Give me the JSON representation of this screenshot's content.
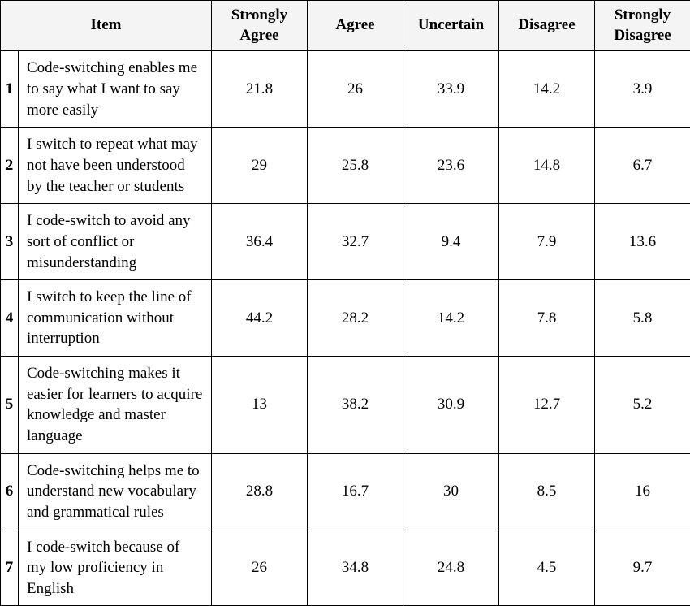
{
  "table": {
    "columns": {
      "item": "Item",
      "responses": [
        "Strongly Agree",
        "Agree",
        "Uncertain",
        "Disagree",
        "Strongly Disagree"
      ]
    },
    "rows": [
      {
        "num": "1",
        "item": "Code-switching enables me to say what I want to say more easily",
        "values": [
          "21.8",
          "26",
          "33.9",
          "14.2",
          "3.9"
        ]
      },
      {
        "num": "2",
        "item": "I switch to repeat what may not have been understood by the teacher or students",
        "values": [
          "29",
          "25.8",
          "23.6",
          "14.8",
          "6.7"
        ]
      },
      {
        "num": "3",
        "item": "I code-switch to avoid any sort of conflict or misunderstanding",
        "values": [
          "36.4",
          "32.7",
          "9.4",
          "7.9",
          "13.6"
        ]
      },
      {
        "num": "4",
        "item": "I switch to keep the line of communication without interruption",
        "values": [
          "44.2",
          "28.2",
          "14.2",
          "7.8",
          "5.8"
        ]
      },
      {
        "num": "5",
        "item": "Code-switching makes it easier for learners to acquire knowledge and master language",
        "values": [
          "13",
          "38.2",
          "30.9",
          "12.7",
          "5.2"
        ]
      },
      {
        "num": "6",
        "item": "Code-switching  helps me to understand new vocabulary and grammatical rules",
        "values": [
          "28.8",
          "16.7",
          "30",
          "8.5",
          "16"
        ]
      },
      {
        "num": "7",
        "item": "I code-switch because of my low proficiency in English",
        "values": [
          "26",
          "34.8",
          "24.8",
          "4.5",
          "9.7"
        ]
      }
    ],
    "header_background": "#f4f4f4",
    "border_color": "#000000",
    "font_family": "Palatino Linotype",
    "font_size_pt": 14
  }
}
